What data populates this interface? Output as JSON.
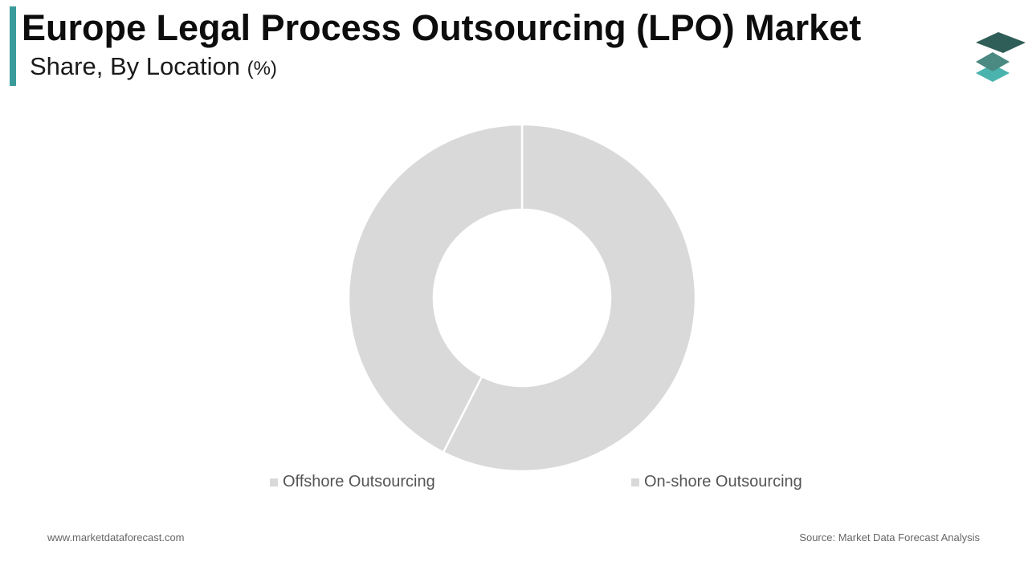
{
  "header": {
    "title": "Europe Legal Process Outsourcing (LPO) Market",
    "subtitle": "Share, By Location",
    "subtitle_unit": "(%)"
  },
  "chart_data": {
    "type": "pie",
    "donut": true,
    "series": [
      {
        "name": "On-shore Outsourcing",
        "value": 57.5,
        "color": "#d9d9d9"
      },
      {
        "name": "Offshore Outsourcing",
        "value": 42.5,
        "color": "#d9d9d9"
      }
    ],
    "legend": [
      "Offshore Outsourcing",
      "On-shore Outsourcing"
    ],
    "legend_position": "bottom",
    "separator_color": "#ffffff"
  },
  "footer": {
    "website": "www.marketdataforecast.com",
    "source": "Source: Market Data Forecast Analysis"
  },
  "colors": {
    "accent": "#3a9c9a",
    "logo_dark": "#2f5e58",
    "logo_mid": "#4a8a82",
    "logo_light": "#4ab3ad"
  },
  "icons": {
    "logo": "stacked-layers-icon"
  }
}
